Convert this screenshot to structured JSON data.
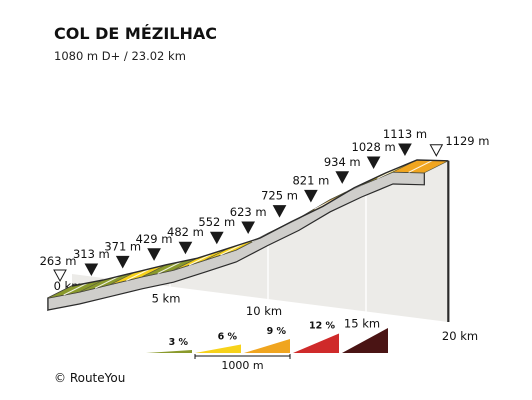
{
  "header": {
    "title": "COL DE MÉZILHAC",
    "subtitle": "1080 m D+ / 23.02 km"
  },
  "footer": {
    "credit": "© RouteYou"
  },
  "chart_data": {
    "type": "area",
    "title": "COL DE MÉZILHAC",
    "subtitle": "1080 m D+ / 23.02 km",
    "x_unit": "km",
    "xlim": [
      0,
      23.02
    ],
    "distance_ticks": [
      {
        "km": 0,
        "label": "0 km"
      },
      {
        "km": 5,
        "label": "5 km"
      },
      {
        "km": 10,
        "label": "10 km"
      },
      {
        "km": 15,
        "label": "15 km"
      },
      {
        "km": 20,
        "label": "20 km"
      }
    ],
    "elevation_markers": [
      {
        "km": 0,
        "elev": 263,
        "label": "263 m",
        "kind": "start"
      },
      {
        "km": 1.6,
        "elev": 313,
        "label": "313 m",
        "kind": "km"
      },
      {
        "km": 3.2,
        "elev": 371,
        "label": "371 m",
        "kind": "km"
      },
      {
        "km": 4.8,
        "elev": 429,
        "label": "429 m",
        "kind": "km"
      },
      {
        "km": 6.4,
        "elev": 482,
        "label": "482 m",
        "kind": "km"
      },
      {
        "km": 8.0,
        "elev": 552,
        "label": "552 m",
        "kind": "km"
      },
      {
        "km": 9.6,
        "elev": 623,
        "label": "623 m",
        "kind": "km"
      },
      {
        "km": 11.2,
        "elev": 725,
        "label": "725 m",
        "kind": "km"
      },
      {
        "km": 12.8,
        "elev": 821,
        "label": "821 m",
        "kind": "km"
      },
      {
        "km": 14.4,
        "elev": 934,
        "label": "934 m",
        "kind": "km"
      },
      {
        "km": 16.0,
        "elev": 1028,
        "label": "1028 m",
        "kind": "km"
      },
      {
        "km": 17.6,
        "elev": 1113,
        "label": "1113 m",
        "kind": "km"
      },
      {
        "km": 19.2,
        "elev": 1129,
        "label": "1129 m",
        "kind": "end"
      }
    ],
    "segments": [
      {
        "from_km": 0.0,
        "to_km": 1.6,
        "gradient": 3
      },
      {
        "from_km": 1.6,
        "to_km": 3.2,
        "gradient": 3
      },
      {
        "from_km": 3.2,
        "to_km": 4.8,
        "gradient": 5
      },
      {
        "from_km": 4.8,
        "to_km": 6.4,
        "gradient": 3
      },
      {
        "from_km": 6.4,
        "to_km": 8.0,
        "gradient": 5
      },
      {
        "from_km": 8.0,
        "to_km": 9.6,
        "gradient": 5
      },
      {
        "from_km": 9.6,
        "to_km": 11.2,
        "gradient": 4
      },
      {
        "from_km": 11.2,
        "to_km": 12.8,
        "gradient": 6
      },
      {
        "from_km": 12.8,
        "to_km": 14.4,
        "gradient": 8
      },
      {
        "from_km": 14.4,
        "to_km": 16.0,
        "gradient": 6
      },
      {
        "from_km": 16.0,
        "to_km": 17.6,
        "gradient": 6
      },
      {
        "from_km": 17.6,
        "to_km": 19.2,
        "gradient": 7
      }
    ],
    "legend": {
      "placement": "bottom-center",
      "entries": [
        {
          "label": "3 %",
          "color": "#8a9a2c"
        },
        {
          "label": "6 %",
          "color": "#f7d21a"
        },
        {
          "label": "9 %",
          "color": "#f0a51f"
        },
        {
          "label": "12 %",
          "color": "#cf2a2a"
        },
        {
          "label": "",
          "color": "#4a1414"
        }
      ],
      "scale_label": "1000 m"
    },
    "colors": {
      "base_fill": "#ecebe8",
      "edge": "#2b2b2b",
      "grad_lt4": "#8a9a2c",
      "grad_4_7": "#f7d21a",
      "grad_7_10": "#f0a51f"
    }
  }
}
